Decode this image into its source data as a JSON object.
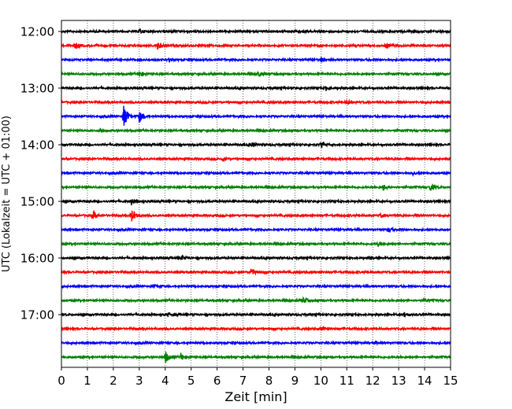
{
  "chart_data": {
    "type": "line",
    "title": "",
    "xlabel": "Zeit  [min]",
    "ylabel": "UTC (Lokalzeit = UTC + 01:00)",
    "xlim": [
      0,
      15
    ],
    "x_ticks": [
      0,
      1,
      2,
      3,
      4,
      5,
      6,
      7,
      8,
      9,
      10,
      11,
      12,
      13,
      14,
      15
    ],
    "y_tick_labels": [
      "12:00",
      "13:00",
      "14:00",
      "15:00",
      "16:00",
      "17:00"
    ],
    "grid": "vertical dotted",
    "row_start": "12:00",
    "row_interval_min": 15,
    "row_colors": [
      "#000000",
      "#ff0000",
      "#0000ff",
      "#008000"
    ],
    "series": [
      {
        "start": "12:00",
        "color": "#000000",
        "events": [
          {
            "x": 3.0,
            "amp": 3
          }
        ]
      },
      {
        "start": "12:15",
        "color": "#ff0000",
        "events": [
          {
            "x": 0.5,
            "amp": 4
          },
          {
            "x": 3.7,
            "amp": 5
          },
          {
            "x": 12.5,
            "amp": 3
          }
        ]
      },
      {
        "start": "12:30",
        "color": "#0000ff",
        "events": [
          {
            "x": 4.1,
            "amp": 2
          },
          {
            "x": 10.0,
            "amp": 3
          }
        ]
      },
      {
        "start": "12:45",
        "color": "#008000",
        "events": [
          {
            "x": 3.0,
            "amp": 4
          },
          {
            "x": 7.6,
            "amp": 3
          }
        ]
      },
      {
        "start": "13:00",
        "color": "#000000",
        "events": [
          {
            "x": 10.2,
            "amp": 3
          }
        ]
      },
      {
        "start": "13:15",
        "color": "#ff0000",
        "events": [
          {
            "x": 11.0,
            "amp": 4
          }
        ]
      },
      {
        "start": "13:30",
        "color": "#0000ff",
        "events": [
          {
            "x": 2.4,
            "amp": 16
          },
          {
            "x": 3.0,
            "amp": 8
          }
        ]
      },
      {
        "start": "13:45",
        "color": "#008000",
        "events": [
          {
            "x": 1.5,
            "amp": 3
          }
        ]
      },
      {
        "start": "14:00",
        "color": "#000000",
        "events": [
          {
            "x": 7.3,
            "amp": 3
          },
          {
            "x": 10.0,
            "amp": 3
          }
        ]
      },
      {
        "start": "14:15",
        "color": "#ff0000",
        "events": [
          {
            "x": 6.2,
            "amp": 2
          }
        ]
      },
      {
        "start": "14:30",
        "color": "#0000ff",
        "events": [
          {
            "x": 13.5,
            "amp": 2
          }
        ]
      },
      {
        "start": "14:45",
        "color": "#008000",
        "events": [
          {
            "x": 12.4,
            "amp": 4
          },
          {
            "x": 14.2,
            "amp": 5
          }
        ]
      },
      {
        "start": "15:00",
        "color": "#000000",
        "events": [
          {
            "x": 2.7,
            "amp": 3
          }
        ]
      },
      {
        "start": "15:15",
        "color": "#ff0000",
        "events": [
          {
            "x": 1.2,
            "amp": 6
          },
          {
            "x": 2.7,
            "amp": 8
          },
          {
            "x": 12.3,
            "amp": 3
          }
        ]
      },
      {
        "start": "15:30",
        "color": "#0000ff",
        "events": [
          {
            "x": 12.6,
            "amp": 3
          }
        ]
      },
      {
        "start": "15:45",
        "color": "#008000",
        "events": [
          {
            "x": 12.2,
            "amp": 3
          }
        ]
      },
      {
        "start": "16:00",
        "color": "#000000",
        "events": [
          {
            "x": 4.6,
            "amp": 3
          },
          {
            "x": 11.8,
            "amp": 2
          }
        ]
      },
      {
        "start": "16:15",
        "color": "#ff0000",
        "events": [
          {
            "x": 7.3,
            "amp": 5
          }
        ]
      },
      {
        "start": "16:30",
        "color": "#0000ff",
        "events": [
          {
            "x": 3.6,
            "amp": 2
          }
        ]
      },
      {
        "start": "16:45",
        "color": "#008000",
        "events": [
          {
            "x": 9.3,
            "amp": 4
          },
          {
            "x": 14.0,
            "amp": 2
          }
        ]
      },
      {
        "start": "17:00",
        "color": "#000000",
        "events": [
          {
            "x": 4.1,
            "amp": 3
          },
          {
            "x": 13.2,
            "amp": 3
          }
        ]
      },
      {
        "start": "17:15",
        "color": "#ff0000",
        "events": [
          {
            "x": 10.0,
            "amp": 3
          }
        ]
      },
      {
        "start": "17:30",
        "color": "#0000ff",
        "events": [
          {
            "x": 12.1,
            "amp": 2
          }
        ]
      },
      {
        "start": "17:45",
        "color": "#008000",
        "events": [
          {
            "x": 4.0,
            "amp": 8
          },
          {
            "x": 4.6,
            "amp": 5
          }
        ]
      }
    ]
  }
}
